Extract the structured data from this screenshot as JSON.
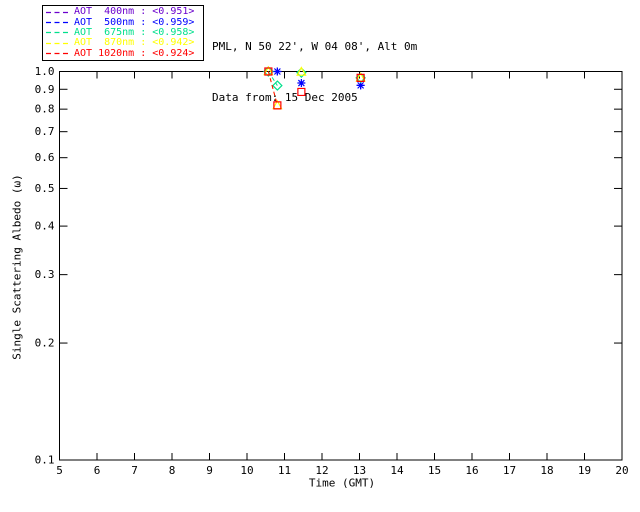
{
  "header": {
    "site_line": "PML, N 50 22', W 04 08', Alt 0m",
    "date_line": "Data from: 15 Dec 2005"
  },
  "legend": {
    "entries": [
      {
        "label": "AOT  400nm : <0.951>",
        "color": "#6a00cd"
      },
      {
        "label": "AOT  500nm : <0.959>",
        "color": "#0000ff"
      },
      {
        "label": "AOT  675nm : <0.958>",
        "color": "#00e08c"
      },
      {
        "label": "AOT  870nm : <0.942>",
        "color": "#ffff00"
      },
      {
        "label": "AOT 1020nm : <0.924>",
        "color": "#ff0000"
      }
    ]
  },
  "chart_data": {
    "type": "scatter",
    "title": "",
    "xlabel": "Time (GMT)",
    "ylabel": "Single Scattering Albedo (ω)",
    "xlim": [
      5,
      20
    ],
    "ylim": [
      0.1,
      1.0
    ],
    "yscale": "log",
    "grid": false,
    "legend_position": "top-left-outside",
    "xticks": [
      5,
      6,
      7,
      8,
      9,
      10,
      11,
      12,
      13,
      14,
      15,
      16,
      17,
      18,
      19,
      20
    ],
    "yticks": [
      {
        "value": 1.0,
        "label": "1.0"
      },
      {
        "value": 0.9,
        "label": "0.9"
      },
      {
        "value": 0.8,
        "label": "0.8"
      },
      {
        "value": 0.7,
        "label": "0.7"
      },
      {
        "value": 0.6,
        "label": "0.6"
      },
      {
        "value": 0.5,
        "label": "0.5"
      },
      {
        "value": 0.4,
        "label": "0.4"
      },
      {
        "value": 0.3,
        "label": "0.3"
      },
      {
        "value": 0.2,
        "label": "0.2"
      },
      {
        "value": 0.1,
        "label": "0.1"
      }
    ],
    "series": [
      {
        "name": "AOT 400nm",
        "mean_label": "<0.951>",
        "color": "#6a00cd",
        "marker": "plus",
        "linestyle": "dashed",
        "points": [
          [
            10.81,
            1.0
          ],
          [
            13.03,
            0.921
          ]
        ],
        "segments": []
      },
      {
        "name": "AOT 500nm",
        "mean_label": "<0.959>",
        "color": "#0000ff",
        "marker": "asterisk",
        "linestyle": "dashed",
        "points": [
          [
            10.81,
            1.0
          ],
          [
            11.45,
            0.934
          ],
          [
            13.03,
            0.921
          ]
        ],
        "segments": []
      },
      {
        "name": "AOT 675nm",
        "mean_label": "<0.958>",
        "color": "#00e08c",
        "marker": "diamond",
        "linestyle": "dashed",
        "points": [
          [
            10.57,
            1.0
          ],
          [
            10.81,
            0.92
          ],
          [
            11.45,
            0.993
          ],
          [
            13.03,
            0.963
          ]
        ],
        "segments": [
          [
            0,
            1
          ]
        ]
      },
      {
        "name": "AOT 870nm",
        "mean_label": "<0.942>",
        "color": "#ffff00",
        "marker": "triangle",
        "linestyle": "dashed",
        "points": [
          [
            10.57,
            1.0
          ],
          [
            10.81,
            0.818
          ],
          [
            11.45,
            0.997
          ],
          [
            13.03,
            0.963
          ]
        ],
        "segments": [
          [
            0,
            1
          ]
        ]
      },
      {
        "name": "AOT 1020nm",
        "mean_label": "<0.924>",
        "color": "#ff0000",
        "marker": "square",
        "linestyle": "dashed",
        "points": [
          [
            10.57,
            1.0
          ],
          [
            10.81,
            0.818
          ],
          [
            11.45,
            0.886
          ],
          [
            13.03,
            0.963
          ]
        ],
        "segments": [
          [
            0,
            1
          ]
        ]
      }
    ]
  }
}
